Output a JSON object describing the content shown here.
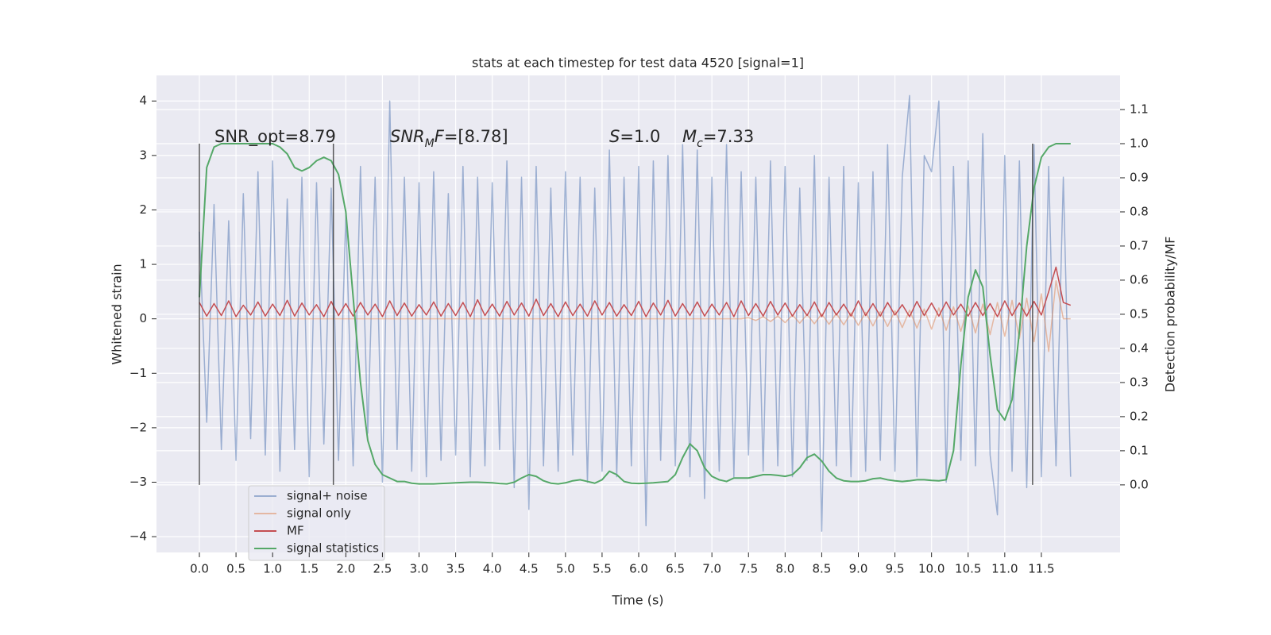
{
  "chart_data": {
    "type": "line",
    "title": "stats at each timestep for test data 4520 [signal=1]",
    "xlabel": "Time (s)",
    "ylabel": "Whitened strain",
    "y2label": "Detection probability/MF",
    "grid": true,
    "legend": "lower left",
    "xlim": [
      -0.586,
      12.575
    ],
    "ylim": [
      -4.29,
      4.47
    ],
    "y2lim": [
      -0.198,
      1.2
    ],
    "xticks": [
      {
        "value": 0,
        "label": "0.0"
      },
      0.5,
      {
        "value": 1,
        "label": "1.0"
      },
      1.5,
      {
        "value": 2,
        "label": "2.0"
      },
      2.5,
      {
        "value": 3,
        "label": "3.0"
      },
      3.5,
      {
        "value": 4,
        "label": "4.0"
      },
      4.5,
      {
        "value": 5,
        "label": "5.0"
      },
      5.5,
      {
        "value": 6,
        "label": "6.0"
      },
      6.5,
      {
        "value": 7,
        "label": "7.0"
      },
      7.5,
      {
        "value": 8,
        "label": "8.0"
      },
      8.5,
      {
        "value": 9,
        "label": "9.0"
      },
      9.5,
      {
        "value": 10,
        "label": "10.0"
      },
      10.5,
      {
        "value": 11,
        "label": "11.0"
      },
      11.5
    ],
    "yticks": [
      {
        "value": -4,
        "label": "−4"
      },
      {
        "value": -3,
        "label": "−3"
      },
      {
        "value": -2,
        "label": "−2"
      },
      {
        "value": -1,
        "label": "−1"
      },
      0,
      1,
      2,
      3,
      4
    ],
    "y2ticks": [
      {
        "value": 0,
        "label": "0.0"
      },
      0.1,
      0.2,
      0.3,
      0.4,
      0.5,
      0.6,
      0.7,
      0.8,
      0.9,
      {
        "value": 1,
        "label": "1.0"
      },
      1.1
    ],
    "vlines": [
      0,
      1.83,
      11.38
    ],
    "vline_span": [
      0,
      1
    ],
    "annotations": [
      {
        "segments": [
          {
            "text": "SNR_opt=8.79"
          }
        ]
      },
      {
        "segments": [
          {
            "text": "SNR",
            "style": "italic"
          },
          {
            "text": "M",
            "style": "sub"
          },
          {
            "text": "F",
            "style": "italic"
          },
          {
            "text": "=[8.78]"
          }
        ]
      },
      {
        "segments": [
          {
            "text": "S",
            "style": "italic"
          },
          {
            "text": "=1.0"
          }
        ]
      },
      {
        "segments": [
          {
            "text": "M",
            "style": "italic"
          },
          {
            "text": "c",
            "style": "sub"
          },
          {
            "text": "=7.33"
          }
        ]
      }
    ],
    "x": [
      0,
      0.1,
      0.2,
      0.3,
      0.4,
      0.5,
      0.6,
      0.7,
      0.8,
      0.9,
      1,
      1.1,
      1.2,
      1.3,
      1.4,
      1.5,
      1.6,
      1.7,
      1.8,
      1.9,
      2,
      2.1,
      2.2,
      2.3,
      2.4,
      2.5,
      2.6,
      2.7,
      2.8,
      2.9,
      3,
      3.1,
      3.2,
      3.3,
      3.4,
      3.5,
      3.6,
      3.7,
      3.8,
      3.9,
      4,
      4.1,
      4.2,
      4.3,
      4.4,
      4.5,
      4.6,
      4.7,
      4.8,
      4.9,
      5,
      5.1,
      5.2,
      5.3,
      5.4,
      5.5,
      5.6,
      5.7,
      5.8,
      5.9,
      6,
      6.1,
      6.2,
      6.3,
      6.4,
      6.5,
      6.6,
      6.7,
      6.8,
      6.9,
      7,
      7.1,
      7.2,
      7.3,
      7.4,
      7.5,
      7.6,
      7.7,
      7.8,
      7.9,
      8,
      8.1,
      8.2,
      8.3,
      8.4,
      8.5,
      8.6,
      8.7,
      8.8,
      8.9,
      9,
      9.1,
      9.2,
      9.3,
      9.4,
      9.5,
      9.6,
      9.7,
      9.8,
      9.9,
      10,
      10.1,
      10.2,
      10.3,
      10.4,
      10.5,
      10.6,
      10.7,
      10.8,
      10.9,
      11,
      11.1,
      11.2,
      11.3,
      11.4,
      11.5,
      11.6,
      11.7,
      11.8,
      11.9
    ],
    "series": [
      {
        "name": "signal+ noise",
        "color": "#4c72b0",
        "opacity": 0.5,
        "values": [
          1.6,
          -1.9,
          2.1,
          -2.4,
          1.8,
          -2.6,
          2.3,
          -2.2,
          2.7,
          -2.5,
          2.9,
          -2.8,
          2.2,
          -2.4,
          2.6,
          -2.9,
          2.5,
          -2.3,
          2.4,
          -2.6,
          1.9,
          -2.7,
          2.8,
          -2.1,
          2.6,
          -3.0,
          4.0,
          -2.4,
          2.6,
          -2.8,
          2.5,
          -2.9,
          2.7,
          -2.6,
          2.3,
          -2.5,
          2.8,
          -2.9,
          2.6,
          -2.7,
          2.5,
          -2.4,
          2.9,
          -3.1,
          2.6,
          -3.5,
          2.8,
          -2.7,
          2.4,
          -2.8,
          2.7,
          -2.5,
          2.6,
          -3.0,
          2.4,
          -2.8,
          3.1,
          -2.9,
          2.6,
          -2.7,
          2.8,
          -3.8,
          2.9,
          -2.6,
          3.0,
          -2.7,
          3.2,
          -2.9,
          3.1,
          -3.3,
          2.6,
          -2.8,
          3.2,
          -2.9,
          2.7,
          -2.5,
          2.6,
          -2.8,
          2.9,
          -2.7,
          2.8,
          -2.9,
          2.4,
          -2.6,
          3.0,
          -3.9,
          2.6,
          -2.7,
          2.8,
          -2.9,
          2.5,
          -2.8,
          2.7,
          -2.6,
          3.2,
          -2.8,
          2.6,
          4.1,
          -2.9,
          3.0,
          2.7,
          4.0,
          -3.0,
          2.8,
          -2.6,
          2.9,
          -2.7,
          3.4,
          -2.5,
          -3.6,
          3.0,
          -2.8,
          2.9,
          -3.1,
          3.2,
          -2.9,
          2.8,
          -2.7,
          2.6,
          -2.9
        ]
      },
      {
        "name": "signal only",
        "color": "#dd8452",
        "opacity": 0.5,
        "values": [
          0,
          0,
          0,
          0,
          0,
          0,
          0,
          0,
          0,
          0,
          0,
          0,
          0,
          0,
          0,
          0,
          0,
          0,
          0,
          0,
          0,
          0,
          0,
          0,
          0,
          0,
          0,
          0,
          0,
          0,
          0,
          0,
          0,
          0,
          0,
          0,
          0,
          0,
          0,
          0,
          0,
          0,
          0,
          0,
          0,
          0,
          0,
          0,
          0,
          0,
          0,
          0,
          0,
          0,
          0,
          0,
          0,
          0,
          0,
          0,
          0,
          0,
          0,
          0,
          0,
          0,
          0,
          0,
          0,
          0,
          0,
          0,
          0,
          0,
          0,
          0.02,
          -0.03,
          0.04,
          -0.05,
          0.05,
          -0.07,
          0.07,
          -0.08,
          0.08,
          -0.09,
          0.09,
          -0.1,
          0.1,
          -0.11,
          0.11,
          -0.12,
          0.12,
          -0.13,
          0.13,
          -0.14,
          0.15,
          -0.16,
          0.16,
          -0.17,
          0.18,
          -0.19,
          0.2,
          -0.21,
          0.22,
          -0.23,
          0.24,
          -0.26,
          0.27,
          -0.29,
          0.3,
          -0.32,
          0.34,
          -0.36,
          0.38,
          -0.42,
          0.46,
          -0.6,
          0.7,
          0,
          0
        ]
      },
      {
        "name": "MF",
        "color": "#c44e52",
        "opacity": 1,
        "values": [
          0.3,
          0.05,
          0.28,
          0.06,
          0.33,
          0.04,
          0.25,
          0.07,
          0.31,
          0.05,
          0.27,
          0.06,
          0.34,
          0.05,
          0.29,
          0.07,
          0.26,
          0.04,
          0.32,
          0.06,
          0.28,
          0.05,
          0.3,
          0.07,
          0.27,
          0.04,
          0.33,
          0.06,
          0.29,
          0.05,
          0.26,
          0.07,
          0.31,
          0.05,
          0.28,
          0.06,
          0.3,
          0.04,
          0.35,
          0.06,
          0.27,
          0.05,
          0.32,
          0.07,
          0.29,
          0.05,
          0.36,
          0.06,
          0.28,
          0.04,
          0.31,
          0.06,
          0.27,
          0.05,
          0.33,
          0.07,
          0.3,
          0.05,
          0.26,
          0.06,
          0.32,
          0.04,
          0.29,
          0.07,
          0.34,
          0.05,
          0.28,
          0.06,
          0.31,
          0.05,
          0.27,
          0.07,
          0.3,
          0.04,
          0.33,
          0.06,
          0.28,
          0.05,
          0.32,
          0.07,
          0.29,
          0.05,
          0.26,
          0.06,
          0.31,
          0.04,
          0.3,
          0.07,
          0.27,
          0.05,
          0.33,
          0.06,
          0.28,
          0.05,
          0.3,
          0.07,
          0.26,
          0.04,
          0.32,
          0.06,
          0.29,
          0.05,
          0.31,
          0.07,
          0.27,
          0.05,
          0.3,
          0.06,
          0.28,
          0.04,
          0.33,
          0.06,
          0.29,
          0.05,
          0.32,
          0.07,
          0.5,
          0.95,
          0.3,
          0.25
        ]
      },
      {
        "name": "signal statistics",
        "color": "#55a868",
        "opacity": 1,
        "axis": "y2",
        "values": [
          0.55,
          0.93,
          0.99,
          1.0,
          1.0,
          1.0,
          1.0,
          1.0,
          1.0,
          1.0,
          1.0,
          0.99,
          0.97,
          0.93,
          0.92,
          0.93,
          0.95,
          0.96,
          0.95,
          0.91,
          0.8,
          0.55,
          0.3,
          0.13,
          0.06,
          0.03,
          0.02,
          0.01,
          0.01,
          0.005,
          0.003,
          0.003,
          0.003,
          0.004,
          0.005,
          0.006,
          0.007,
          0.008,
          0.008,
          0.007,
          0.006,
          0.004,
          0.003,
          0.008,
          0.02,
          0.03,
          0.025,
          0.012,
          0.005,
          0.003,
          0.006,
          0.012,
          0.015,
          0.01,
          0.005,
          0.015,
          0.04,
          0.03,
          0.01,
          0.005,
          0.004,
          0.005,
          0.006,
          0.008,
          0.01,
          0.03,
          0.08,
          0.12,
          0.1,
          0.05,
          0.025,
          0.015,
          0.01,
          0.02,
          0.02,
          0.02,
          0.025,
          0.03,
          0.03,
          0.028,
          0.025,
          0.03,
          0.05,
          0.08,
          0.09,
          0.07,
          0.04,
          0.02,
          0.012,
          0.01,
          0.01,
          0.012,
          0.018,
          0.02,
          0.015,
          0.012,
          0.01,
          0.012,
          0.015,
          0.015,
          0.013,
          0.012,
          0.015,
          0.1,
          0.35,
          0.55,
          0.63,
          0.58,
          0.38,
          0.22,
          0.19,
          0.25,
          0.45,
          0.7,
          0.87,
          0.96,
          0.99,
          1.0,
          1.0,
          1.0
        ]
      }
    ]
  }
}
